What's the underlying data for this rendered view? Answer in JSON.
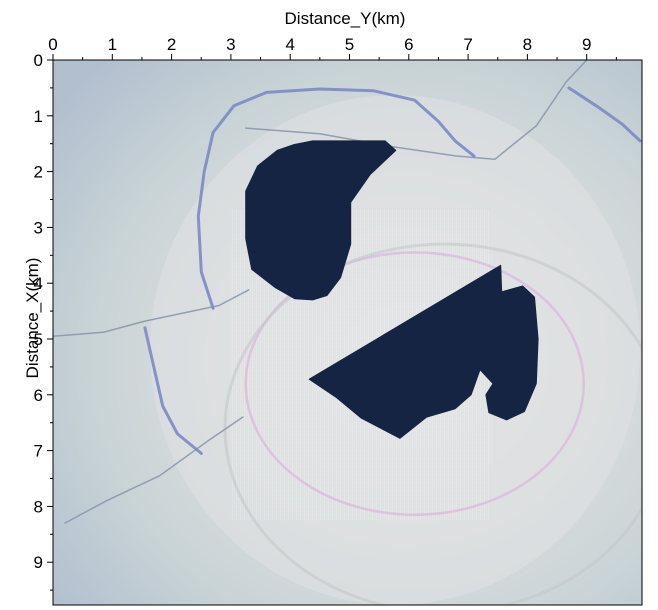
{
  "chart_data": {
    "type": "heatmap",
    "title": "",
    "xlabel": "Distance_Y(km)",
    "ylabel": "Distance_X(km)",
    "x_axis_position": "top",
    "y_axis_direction": "down",
    "xlim": [
      0,
      10
    ],
    "ylim": [
      0,
      10
    ],
    "x_ticks": [
      0,
      1,
      2,
      3,
      4,
      5,
      6,
      7,
      8,
      9
    ],
    "y_ticks": [
      0,
      1,
      2,
      3,
      4,
      5,
      6,
      7,
      8,
      9
    ],
    "grid": false,
    "legend": "none",
    "colors": {
      "outer_background": "#b4c0cf",
      "mid_background": "#c7d3d6",
      "inner_background": "#d6dadb",
      "center_region": "#e2e3e5",
      "dark_anomaly": "#162444",
      "fault_line": "#8a97ad",
      "blue_line": "#7d88c6",
      "pink_ring": "#dcbfdf"
    },
    "regions": [
      {
        "name": "dark-anomaly-upper",
        "points": [
          [
            4.38,
            1.45
          ],
          [
            5.6,
            1.45
          ],
          [
            5.78,
            1.62
          ],
          [
            5.35,
            2.05
          ],
          [
            5.02,
            2.55
          ],
          [
            5.02,
            3.3
          ],
          [
            4.85,
            3.9
          ],
          [
            4.62,
            4.22
          ],
          [
            4.38,
            4.3
          ],
          [
            4.08,
            4.28
          ],
          [
            3.75,
            4.08
          ],
          [
            3.35,
            3.75
          ],
          [
            3.25,
            3.2
          ],
          [
            3.25,
            2.35
          ],
          [
            3.45,
            1.9
          ],
          [
            3.78,
            1.62
          ],
          [
            4.05,
            1.52
          ]
        ]
      },
      {
        "name": "dark-anomaly-lower",
        "points": [
          [
            4.32,
            5.72
          ],
          [
            7.55,
            3.68
          ],
          [
            7.58,
            4.55
          ],
          [
            7.58,
            4.15
          ],
          [
            7.92,
            4.05
          ],
          [
            8.12,
            4.25
          ],
          [
            8.18,
            5.0
          ],
          [
            8.15,
            5.8
          ],
          [
            7.95,
            6.3
          ],
          [
            7.65,
            6.45
          ],
          [
            7.35,
            6.32
          ],
          [
            7.3,
            6.0
          ],
          [
            7.42,
            5.8
          ],
          [
            7.2,
            5.55
          ],
          [
            7.05,
            6.0
          ],
          [
            6.78,
            6.25
          ],
          [
            6.3,
            6.4
          ],
          [
            5.85,
            6.78
          ],
          [
            5.2,
            6.42
          ],
          [
            4.78,
            6.05
          ]
        ]
      }
    ],
    "lines": [
      {
        "name": "fault-upper",
        "points": [
          [
            3.25,
            1.22
          ],
          [
            4.5,
            1.32
          ],
          [
            5.7,
            1.55
          ],
          [
            6.8,
            1.72
          ],
          [
            7.45,
            1.78
          ],
          [
            8.15,
            1.18
          ],
          [
            8.65,
            0.4
          ],
          [
            9.0,
            0.0
          ]
        ]
      },
      {
        "name": "fault-left",
        "points": [
          [
            0.0,
            4.95
          ],
          [
            0.85,
            4.88
          ],
          [
            1.55,
            4.68
          ],
          [
            2.8,
            4.4
          ],
          [
            3.3,
            4.12
          ]
        ]
      },
      {
        "name": "fault-lower-left",
        "points": [
          [
            0.2,
            8.3
          ],
          [
            0.9,
            7.9
          ],
          [
            1.8,
            7.45
          ],
          [
            2.65,
            6.8
          ],
          [
            3.2,
            6.4
          ]
        ]
      },
      {
        "name": "blue-contour-upper",
        "points": [
          [
            2.7,
            4.45
          ],
          [
            2.5,
            3.8
          ],
          [
            2.45,
            2.8
          ],
          [
            2.55,
            2.0
          ],
          [
            2.7,
            1.3
          ],
          [
            3.05,
            0.82
          ],
          [
            3.6,
            0.58
          ],
          [
            4.5,
            0.52
          ],
          [
            5.4,
            0.55
          ],
          [
            6.1,
            0.72
          ],
          [
            6.5,
            1.1
          ],
          [
            6.78,
            1.45
          ],
          [
            7.1,
            1.72
          ]
        ]
      },
      {
        "name": "blue-contour-left",
        "points": [
          [
            1.55,
            4.8
          ],
          [
            1.7,
            5.5
          ],
          [
            1.85,
            6.2
          ],
          [
            2.1,
            6.7
          ],
          [
            2.5,
            7.05
          ]
        ]
      },
      {
        "name": "blue-contour-right",
        "points": [
          [
            8.7,
            0.5
          ],
          [
            9.2,
            0.85
          ],
          [
            9.6,
            1.15
          ],
          [
            9.9,
            1.45
          ]
        ]
      }
    ],
    "rings": [
      {
        "name": "pink-ring",
        "cx": 6.1,
        "cy": 5.8,
        "rx": 2.85,
        "ry": 2.35
      }
    ]
  }
}
